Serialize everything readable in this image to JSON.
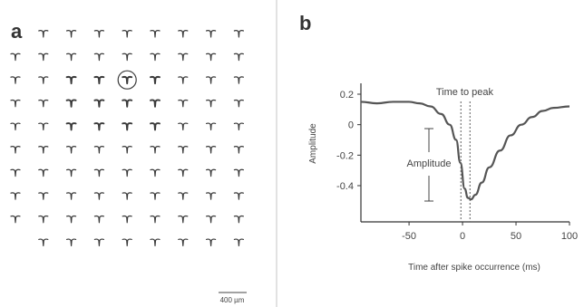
{
  "panel_a": {
    "letter": "a",
    "scale_bar_label": "400 µm",
    "grid": {
      "rows": 10,
      "cols": 9,
      "missing": [
        [
          0,
          0
        ],
        [
          9,
          0
        ]
      ],
      "circled": [
        2,
        4
      ]
    }
  },
  "panel_b": {
    "letter": "b",
    "annotation_time_to_peak": "Time to peak",
    "annotation_amplitude": "Amplitude"
  },
  "chart_data": {
    "type": "line",
    "title": "",
    "xlabel": "Time after spike occurrence (ms)",
    "ylabel": "Amplitude",
    "xlim": [
      -95,
      100
    ],
    "ylim": [
      -0.55,
      0.25
    ],
    "xticks": [
      -50,
      0,
      50,
      100
    ],
    "yticks": [
      0.2,
      0,
      -0.2,
      -0.4
    ],
    "xtick_labels": [
      "-50",
      "0",
      "50",
      "100"
    ],
    "ytick_labels": [
      "0.2",
      "0",
      "-0.2",
      "-0.4"
    ],
    "grid": false,
    "x": [
      -95,
      -80,
      -65,
      -50,
      -40,
      -30,
      -20,
      -12,
      -6,
      -2,
      2,
      5,
      8,
      12,
      18,
      25,
      35,
      45,
      55,
      65,
      75,
      85,
      100
    ],
    "values": [
      0.15,
      0.14,
      0.15,
      0.15,
      0.14,
      0.12,
      0.07,
      0.0,
      -0.1,
      -0.25,
      -0.42,
      -0.48,
      -0.49,
      -0.46,
      -0.38,
      -0.28,
      -0.17,
      -0.07,
      0.0,
      0.05,
      0.09,
      0.11,
      0.12
    ],
    "peak_time_range": [
      -1.5,
      7
    ]
  }
}
